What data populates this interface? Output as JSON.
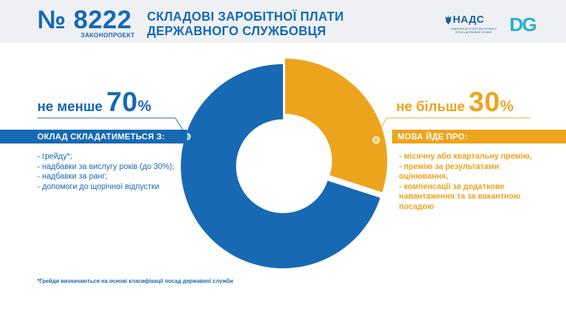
{
  "header": {
    "bill_number": "№ 8222",
    "bill_subtitle": "ЗАКОНОПРОЕКТ",
    "title_line1": "СКЛАДОВІ ЗАРОБІТНОЇ ПЛАТИ",
    "title_line2": "ДЕРЖАВНОГО СЛУЖБОВЦЯ",
    "logo_nads_name": "НАДС",
    "logo_nads_sub": "Національне агентство України з питань державної служби",
    "logo_dg_text": "DG"
  },
  "left": {
    "phrase": "не менше ",
    "number": "70",
    "percent": "%",
    "bar_label": "ОКЛАД СКЛАДАТИМЕТЬСЯ З:",
    "items": [
      "- грейду*;",
      "- надбавки за вислугу років (до 30%);",
      "- надбавки за ранг;",
      "- допомоги до щорічної відпустки"
    ]
  },
  "right": {
    "phrase": "не більше ",
    "number": "30",
    "percent": "%",
    "bar_label": "МОВА ЙДЕ ПРО:",
    "items": [
      "- місячну або квартальну премію,",
      "- премію за результатами оцінювання,",
      "- компенсації за додаткове навантаження та за вакантною посадою"
    ]
  },
  "footnote": "*Грейди визначаються на основі класифікації посад державної служби",
  "colors": {
    "blue": "#1769b3",
    "orange": "#eda41d",
    "header_bg": "#eef0f3"
  },
  "chart_data": {
    "type": "pie",
    "donut": true,
    "series": [
      {
        "name": "не менше 70%",
        "value": 70,
        "color": "#1769b3"
      },
      {
        "name": "не більше 30%",
        "value": 30,
        "color": "#eda41d"
      }
    ],
    "title": "",
    "legend": "none"
  }
}
